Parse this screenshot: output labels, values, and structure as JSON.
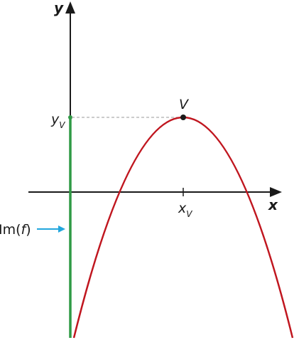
{
  "axes": {
    "x_label": "x",
    "y_label": "y"
  },
  "vertex": {
    "label": "V",
    "x_label": "x",
    "x_sub": "V",
    "y_label": "y",
    "y_sub": "V"
  },
  "image_label": {
    "prefix": "Im(",
    "var": "f",
    "suffix": ")"
  },
  "colors": {
    "parabola": "#c0161f",
    "image_segment": "#2f9a45",
    "arrow": "#22a6dd",
    "axes": "#1a1a1a",
    "guide": "#999999"
  }
}
